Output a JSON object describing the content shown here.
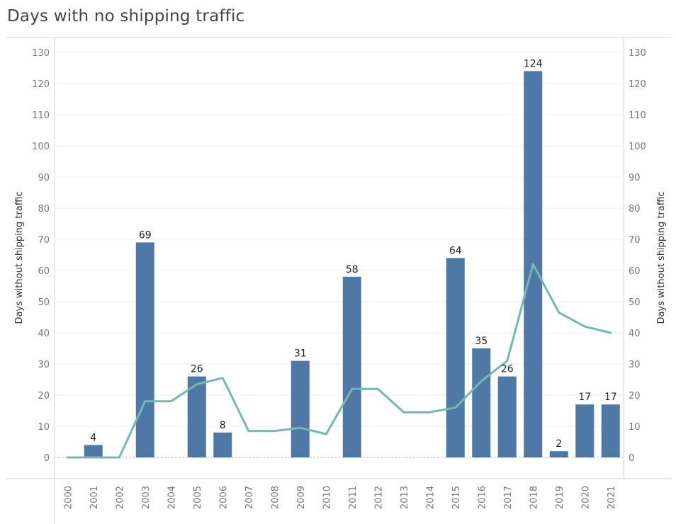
{
  "title": "Days with no shipping traffic",
  "chart_data": {
    "type": "bar",
    "title": "Days with no shipping traffic",
    "categories": [
      "2000",
      "2001",
      "2002",
      "2003",
      "2004",
      "2005",
      "2006",
      "2007",
      "2008",
      "2009",
      "2010",
      "2011",
      "2012",
      "2013",
      "2014",
      "2015",
      "2016",
      "2017",
      "2018",
      "2019",
      "2020",
      "2021"
    ],
    "series": [
      {
        "type": "bar",
        "values": [
          0,
          4,
          0,
          69,
          0,
          26,
          8,
          0,
          0,
          31,
          0,
          58,
          0,
          0,
          0,
          64,
          35,
          26,
          124,
          2,
          17,
          17
        ],
        "labels": [
          "",
          "4",
          "",
          "69",
          "",
          "26",
          "8",
          "",
          "",
          "31",
          "",
          "58",
          "",
          "",
          "",
          "64",
          "35",
          "26",
          "124",
          "2",
          "17",
          "17"
        ],
        "color": "#4e79a7"
      },
      {
        "type": "line",
        "values": [
          0,
          0,
          0,
          18,
          18,
          23.5,
          25.5,
          8.5,
          8.5,
          9.5,
          7.5,
          22,
          22,
          14.5,
          14.5,
          16,
          24.5,
          31,
          62,
          46.5,
          42,
          40
        ],
        "color": "#76b7b2"
      }
    ],
    "ylabel": "Days without shipping traffic",
    "ylabel_right": "Days without shipping traffic",
    "ylim": [
      0,
      130
    ],
    "yticks": [
      0,
      10,
      20,
      30,
      40,
      50,
      60,
      70,
      80,
      90,
      100,
      110,
      120,
      130
    ],
    "grid": true
  }
}
